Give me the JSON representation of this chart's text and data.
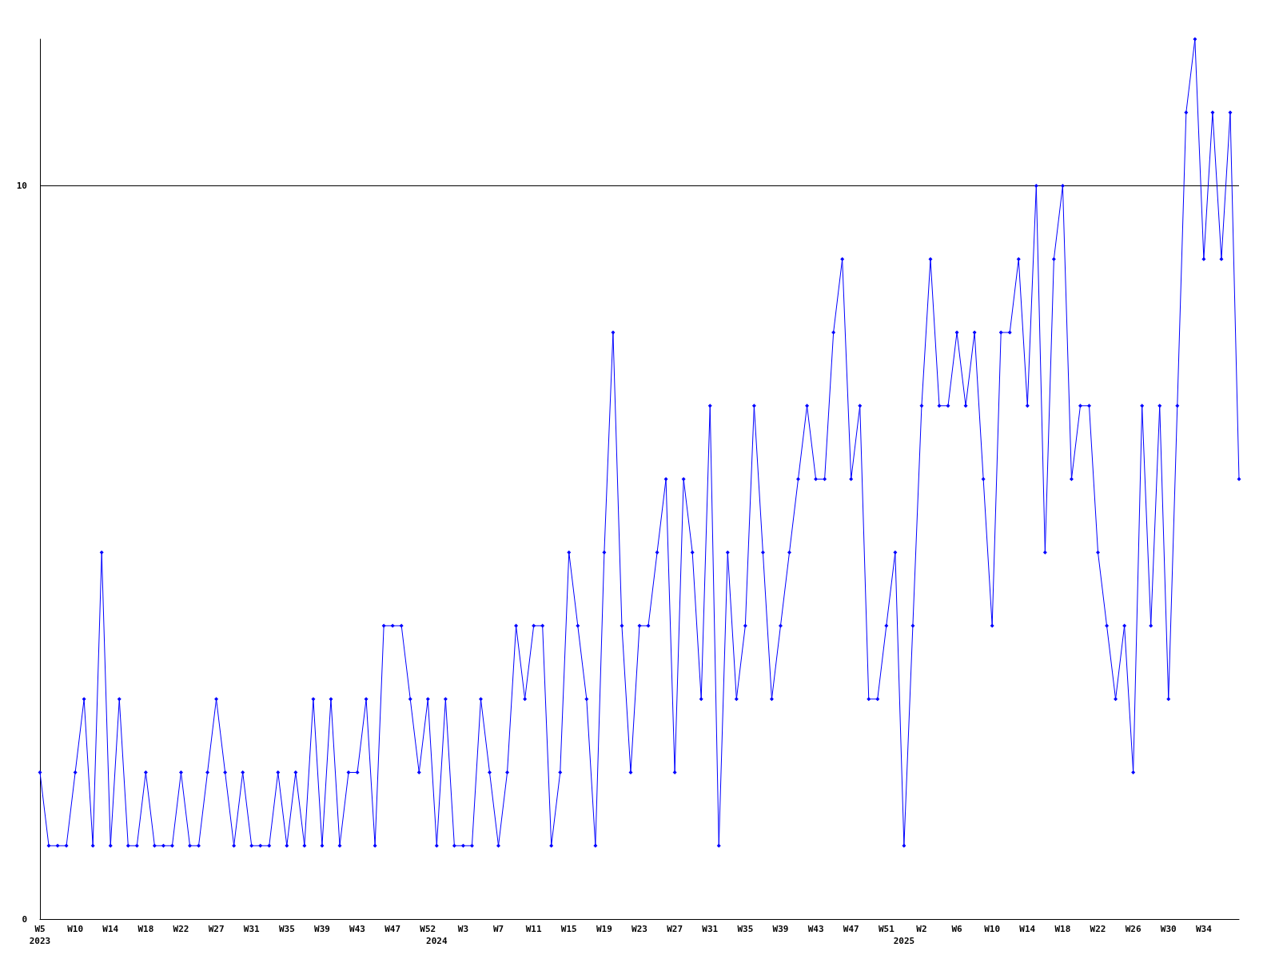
{
  "chart_data": {
    "type": "line",
    "categories": [
      "W5\n2023",
      null,
      null,
      null,
      "W10",
      null,
      null,
      null,
      "W14",
      null,
      null,
      null,
      "W18",
      null,
      null,
      null,
      "W22",
      null,
      null,
      null,
      "W27",
      null,
      null,
      null,
      "W31",
      null,
      null,
      null,
      "W35",
      null,
      null,
      null,
      "W39",
      null,
      null,
      null,
      "W43",
      null,
      null,
      null,
      "W47",
      null,
      null,
      null,
      "W52",
      "\n2024",
      null,
      null,
      "W3",
      null,
      null,
      null,
      "W7",
      null,
      null,
      null,
      "W11",
      null,
      null,
      null,
      "W15",
      null,
      null,
      null,
      "W19",
      null,
      null,
      null,
      "W23",
      null,
      null,
      null,
      "W27",
      null,
      null,
      null,
      "W31",
      null,
      null,
      null,
      "W35",
      null,
      null,
      null,
      "W39",
      null,
      null,
      null,
      "W43",
      null,
      null,
      null,
      "W47",
      null,
      null,
      null,
      "W51",
      null,
      "\n2025",
      null,
      "W2",
      null,
      null,
      null,
      "W6",
      null,
      null,
      null,
      "W10",
      null,
      null,
      null,
      "W14",
      null,
      null,
      null,
      "W18",
      null,
      null,
      null,
      "W22",
      null,
      null,
      null,
      "W26",
      null,
      null,
      null,
      "W30",
      null,
      null,
      null,
      "W34",
      null,
      null,
      null,
      null
    ],
    "series": [
      {
        "color": "#0000ff",
        "values": [
          2,
          1,
          1,
          1,
          2,
          3,
          1,
          5,
          1,
          3,
          1,
          1,
          2,
          1,
          1,
          1,
          2,
          1,
          1,
          2,
          3,
          2,
          1,
          2,
          1,
          1,
          1,
          2,
          1,
          2,
          1,
          3,
          1,
          3,
          1,
          2,
          2,
          3,
          1,
          4,
          4,
          4,
          3,
          2,
          3,
          1,
          3,
          1,
          1,
          1,
          3,
          2,
          1,
          2,
          4,
          3,
          4,
          4,
          1,
          2,
          5,
          4,
          3,
          1,
          5,
          8,
          4,
          2,
          4,
          4,
          5,
          6,
          2,
          6,
          5,
          3,
          7,
          1,
          5,
          3,
          4,
          7,
          5,
          3,
          4,
          5,
          6,
          7,
          6,
          6,
          8,
          9,
          6,
          7,
          3,
          3,
          4,
          5,
          1,
          4,
          7,
          9,
          7,
          7,
          8,
          7,
          8,
          6,
          4,
          8,
          8,
          9,
          7,
          10,
          5,
          9,
          10,
          6,
          7,
          7,
          5,
          4,
          3,
          4,
          2,
          7,
          4,
          7,
          3,
          7,
          11,
          12,
          9,
          11,
          9,
          11,
          6
        ]
      }
    ],
    "ylim": [
      0,
      12
    ],
    "yticks": [
      0,
      10
    ],
    "grid": "y",
    "marker": "diamond",
    "line_style": "solid"
  }
}
